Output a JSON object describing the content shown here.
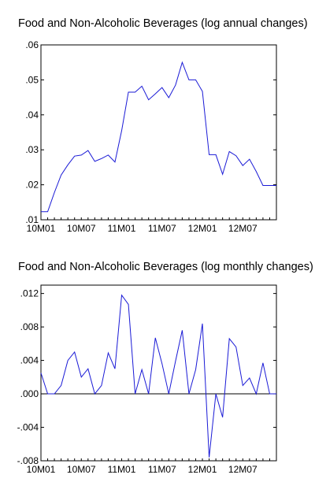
{
  "chart_data": [
    {
      "type": "line",
      "title": "Food and Non-Alcoholic Beverages (log annual changes)",
      "x": [
        "10M01",
        "10M02",
        "10M03",
        "10M04",
        "10M05",
        "10M06",
        "10M07",
        "10M08",
        "10M09",
        "10M10",
        "10M11",
        "10M12",
        "11M01",
        "11M02",
        "11M03",
        "11M04",
        "11M05",
        "11M06",
        "11M07",
        "11M08",
        "11M09",
        "11M10",
        "11M11",
        "11M12",
        "12M01",
        "12M02",
        "12M03",
        "12M04",
        "12M05",
        "12M06",
        "12M07",
        "12M08",
        "12M09",
        "12M10",
        "12M11",
        "12M12"
      ],
      "x_tick_labels": [
        "10M01",
        "10M07",
        "11M01",
        "11M07",
        "12M01",
        "12M07"
      ],
      "y_tick_labels": [
        ".01",
        ".02",
        ".03",
        ".04",
        ".05",
        ".06"
      ],
      "y_ticks": [
        0.01,
        0.02,
        0.03,
        0.04,
        0.05,
        0.06
      ],
      "ylim": [
        0.01,
        0.06
      ],
      "series": [
        {
          "values": [
            0.0123,
            0.0123,
            0.0178,
            0.0228,
            0.0257,
            0.0282,
            0.0285,
            0.0298,
            0.0267,
            0.0275,
            0.0285,
            0.0265,
            0.0355,
            0.0465,
            0.0465,
            0.0482,
            0.0443,
            0.046,
            0.0478,
            0.0449,
            0.0485,
            0.055,
            0.05,
            0.05,
            0.0467,
            0.0286,
            0.0286,
            0.023,
            0.0295,
            0.0283,
            0.0255,
            0.0273,
            0.0238,
            0.0198,
            0.0198,
            0.0198
          ],
          "color": "#1a1ad6"
        }
      ]
    },
    {
      "type": "line",
      "title": "Food and Non-Alcoholic Beverages (log monthly changes)",
      "x": [
        "10M01",
        "10M02",
        "10M03",
        "10M04",
        "10M05",
        "10M06",
        "10M07",
        "10M08",
        "10M09",
        "10M10",
        "10M11",
        "10M12",
        "11M01",
        "11M02",
        "11M03",
        "11M04",
        "11M05",
        "11M06",
        "11M07",
        "11M08",
        "11M09",
        "11M10",
        "11M11",
        "11M12",
        "12M01",
        "12M02",
        "12M03",
        "12M04",
        "12M05",
        "12M06",
        "12M07",
        "12M08",
        "12M09",
        "12M10",
        "12M11",
        "12M12"
      ],
      "x_tick_labels": [
        "10M01",
        "10M07",
        "11M01",
        "11M07",
        "12M01",
        "12M07"
      ],
      "y_tick_labels": [
        ".012",
        ".008",
        ".004",
        ".000",
        "-.004",
        "-.008"
      ],
      "y_ticks": [
        0.012,
        0.008,
        0.004,
        0.0,
        -0.004,
        -0.008
      ],
      "ylim": [
        -0.008,
        0.013
      ],
      "series": [
        {
          "values": [
            0.0025,
            0.0,
            0.0,
            0.001,
            0.004,
            0.005,
            0.002,
            0.003,
            0.0,
            0.001,
            0.0049,
            0.003,
            0.0118,
            0.0107,
            0.0,
            0.0029,
            0.0,
            0.0067,
            0.0036,
            0.0,
            0.0039,
            0.0076,
            0.0,
            0.0029,
            0.0084,
            -0.0076,
            0.0,
            -0.0028,
            0.0066,
            0.0056,
            0.001,
            0.0019,
            0.0,
            0.0037,
            0.0,
            0.0
          ],
          "color": "#1a1ad6"
        }
      ]
    }
  ]
}
